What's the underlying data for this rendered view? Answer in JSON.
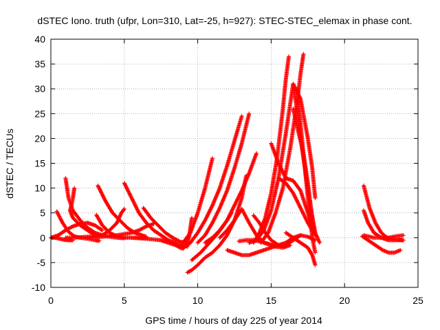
{
  "chart_data": {
    "type": "scatter",
    "title": "dSTEC Iono. truth (ufpr, Lon=310, Lat=-25, h=927): STEC-STEC_elemax in phase cont.",
    "xlabel": "GPS time / hours of day 225 of year 2014",
    "ylabel": "dSTEC  / TECUs",
    "xlim": [
      0,
      25
    ],
    "ylim": [
      -10,
      40
    ],
    "x_ticks": [
      0,
      5,
      10,
      15,
      20,
      25
    ],
    "y_ticks": [
      -10,
      -5,
      0,
      5,
      10,
      15,
      20,
      25,
      30,
      35,
      40
    ],
    "grid": true,
    "marker": "+",
    "color": "#ff0000",
    "series": [
      {
        "x": [
          0.0,
          0.3,
          0.6,
          0.9,
          1.2,
          1.5
        ],
        "y": [
          0.0,
          0.0,
          -0.2,
          -0.4,
          -0.5,
          -0.5
        ]
      },
      {
        "x": [
          0.0,
          0.5,
          1.0,
          1.5,
          2.0,
          2.5,
          3.0,
          3.5
        ],
        "y": [
          0.0,
          0.5,
          1.5,
          2.3,
          2.8,
          3.0,
          2.5,
          1.5
        ]
      },
      {
        "x": [
          0.4,
          0.8,
          1.2,
          1.6,
          2.0,
          2.5,
          3.0,
          3.3
        ],
        "y": [
          5.3,
          3.0,
          1.2,
          0.3,
          0.0,
          -0.2,
          -0.5,
          -0.6
        ]
      },
      {
        "x": [
          1.0,
          1.2,
          1.5,
          2.0,
          2.5,
          3.0,
          3.5,
          4.0,
          4.5,
          5.0
        ],
        "y": [
          12.0,
          8.0,
          5.5,
          3.5,
          2.0,
          1.0,
          0.5,
          0.2,
          0.0,
          -0.1
        ]
      },
      {
        "x": [
          1.6,
          1.5,
          1.4,
          1.3,
          1.5,
          2.0,
          2.5,
          3.0
        ],
        "y": [
          10.0,
          8.0,
          6.5,
          5.5,
          4.0,
          2.5,
          1.5,
          0.5
        ]
      },
      {
        "x": [
          1.0,
          1.5,
          2.0,
          2.5,
          3.0,
          3.5,
          4.0,
          4.5,
          4.8,
          5.0
        ],
        "y": [
          0.0,
          0.0,
          0.1,
          0.2,
          0.3,
          0.5,
          1.5,
          3.0,
          5.0,
          5.8
        ]
      },
      {
        "x": [
          3.2,
          3.7,
          4.2,
          4.7,
          5.2,
          5.7,
          6.2,
          6.5
        ],
        "y": [
          10.5,
          7.5,
          5.0,
          3.5,
          2.0,
          1.0,
          0.5,
          0.2
        ]
      },
      {
        "x": [
          3.1,
          3.5,
          4.0,
          4.5,
          5.0,
          5.5,
          6.0,
          6.5
        ],
        "y": [
          4.6,
          2.5,
          1.0,
          0.3,
          0.0,
          0.0,
          0.0,
          -0.1
        ]
      },
      {
        "x": [
          5.0,
          5.5,
          6.0,
          6.5,
          7.0,
          7.5,
          8.0,
          8.5
        ],
        "y": [
          11.0,
          8.0,
          5.0,
          3.0,
          1.5,
          0.5,
          -0.5,
          -1.0
        ]
      },
      {
        "x": [
          2.5,
          3.5,
          4.5,
          5.5,
          6.0,
          6.5,
          7.0
        ],
        "y": [
          0.0,
          0.2,
          0.5,
          1.0,
          1.5,
          2.3,
          2.8
        ]
      },
      {
        "x": [
          6.3,
          6.8,
          7.3,
          7.8,
          8.3,
          8.8,
          9.2
        ],
        "y": [
          6.0,
          4.0,
          2.5,
          1.0,
          0.0,
          -0.8,
          -1.0
        ]
      },
      {
        "x": [
          5.5,
          6.5,
          7.5,
          8.0,
          8.5,
          9.0,
          9.3
        ],
        "y": [
          0.0,
          -0.2,
          -0.5,
          -0.8,
          -1.2,
          -1.5,
          -1.8
        ]
      },
      {
        "x": [
          7.5,
          8.0,
          8.5,
          9.0,
          9.3,
          9.5
        ],
        "y": [
          -0.5,
          -1.0,
          -1.5,
          -1.8,
          -1.5,
          -1.0
        ]
      },
      {
        "x": [
          8.5,
          8.8,
          9.0,
          9.2,
          9.4,
          9.5,
          9.6
        ],
        "y": [
          -1.5,
          -2.0,
          -2.2,
          -1.5,
          0.0,
          2.0,
          4.0
        ]
      },
      {
        "x": [
          9.3,
          9.6,
          10.0,
          10.5,
          11.0,
          11.5,
          12.0,
          12.5,
          13.0,
          13.3
        ],
        "y": [
          -7.0,
          -6.5,
          -5.5,
          -4.0,
          -3.0,
          -1.5,
          0.5,
          3.5,
          8.0,
          12.5
        ]
      },
      {
        "x": [
          9.6,
          10.2,
          10.8,
          11.4,
          12.0,
          12.3
        ],
        "y": [
          -4.5,
          -3.0,
          -1.0,
          1.0,
          3.5,
          5.0
        ]
      },
      {
        "x": [
          9.0,
          9.5,
          10.0,
          10.5,
          11.0
        ],
        "y": [
          -1.0,
          1.0,
          5.0,
          10.0,
          16.0
        ]
      },
      {
        "x": [
          9.5,
          10.0,
          10.5,
          11.0,
          11.5,
          12.0,
          12.5,
          13.0
        ],
        "y": [
          -1.0,
          1.0,
          3.5,
          6.5,
          10.0,
          14.5,
          19.5,
          24.5
        ]
      },
      {
        "x": [
          10.0,
          10.5,
          11.0,
          11.5,
          12.0,
          12.5,
          13.0,
          13.5
        ],
        "y": [
          -1.0,
          0.5,
          3.0,
          6.0,
          9.5,
          14.0,
          19.0,
          25.0
        ]
      },
      {
        "x": [
          10.5,
          11.0,
          11.5,
          12.0,
          12.5,
          13.0,
          13.5,
          14.0
        ],
        "y": [
          -1.0,
          0.0,
          1.5,
          3.5,
          6.5,
          9.5,
          13.0,
          17.0
        ]
      },
      {
        "x": [
          11.5,
          12.0,
          12.5,
          13.0,
          13.5,
          14.0,
          14.5,
          15.0,
          15.5
        ],
        "y": [
          0.0,
          1.5,
          3.5,
          5.8,
          3.0,
          0.5,
          -1.0,
          -1.5,
          -1.5
        ]
      },
      {
        "x": [
          12.0,
          12.5,
          13.0,
          13.5,
          14.0,
          14.5,
          15.0,
          15.5,
          16.0,
          16.5,
          17.0
        ],
        "y": [
          -2.5,
          -3.0,
          -3.5,
          -3.5,
          -3.0,
          -2.5,
          -2.0,
          -1.5,
          -1.0,
          0.0,
          0.5
        ]
      },
      {
        "x": [
          12.8,
          13.3,
          13.8,
          14.3,
          14.8,
          15.3,
          15.8,
          16.3
        ],
        "y": [
          -0.7,
          -0.5,
          -0.5,
          -0.8,
          -1.2,
          -1.8,
          -2.0,
          -1.5
        ]
      },
      {
        "x": [
          13.8,
          14.2,
          14.6,
          15.0,
          15.5,
          16.0,
          16.5,
          17.0,
          17.5,
          18.0
        ],
        "y": [
          4.5,
          3.0,
          1.0,
          -0.5,
          -1.5,
          -1.5,
          -0.5,
          0.5,
          0.2,
          -0.5
        ]
      },
      {
        "x": [
          13.5,
          14.0,
          14.5,
          15.0,
          15.5,
          16.0,
          16.5,
          17.0,
          17.5,
          17.8,
          18.0
        ],
        "y": [
          -1.0,
          -0.5,
          1.5,
          5.5,
          12.0,
          21.0,
          31.0,
          28.0,
          20.0,
          14.0,
          8.0
        ]
      },
      {
        "x": [
          13.8,
          14.2,
          14.6,
          15.0,
          15.4,
          15.8,
          16.0,
          16.2
        ],
        "y": [
          -1.0,
          1.0,
          4.0,
          9.0,
          16.0,
          26.0,
          32.0,
          36.5
        ]
      },
      {
        "x": [
          14.3,
          14.8,
          15.3,
          15.8,
          16.3,
          16.8,
          17.0,
          17.2
        ],
        "y": [
          -1.0,
          1.0,
          5.0,
          10.0,
          18.0,
          28.0,
          33.0,
          37.0
        ]
      },
      {
        "x": [
          15.0,
          15.5,
          16.0,
          16.5,
          17.0,
          17.5,
          18.0
        ],
        "y": [
          19.0,
          15.0,
          12.0,
          11.5,
          9.5,
          5.0,
          0.5
        ]
      },
      {
        "x": [
          15.5,
          16.0,
          16.5,
          17.0,
          17.5,
          18.0
        ],
        "y": [
          12.0,
          11.0,
          9.0,
          6.0,
          3.0,
          0.5
        ]
      },
      {
        "x": [
          16.5,
          16.8,
          17.1,
          17.4,
          17.7,
          18.0,
          18.3
        ],
        "y": [
          31.0,
          25.0,
          18.0,
          12.0,
          6.0,
          1.0,
          -1.0
        ]
      },
      {
        "x": [
          16.8,
          17.0,
          17.2,
          17.4,
          17.6,
          17.8,
          18.0
        ],
        "y": [
          30.0,
          23.0,
          17.0,
          11.0,
          5.0,
          0.0,
          -3.0
        ]
      },
      {
        "x": [
          16.5,
          16.8,
          17.2,
          17.5,
          17.8,
          18.0
        ],
        "y": [
          26.0,
          22.0,
          17.0,
          11.0,
          4.0,
          1.0
        ]
      },
      {
        "x": [
          16.0,
          16.5,
          17.0,
          17.5,
          17.8,
          18.0
        ],
        "y": [
          1.0,
          0.0,
          -1.0,
          -2.0,
          -3.5,
          -5.5
        ]
      },
      {
        "x": [
          21.3,
          21.7,
          22.1,
          22.5,
          22.9,
          23.3,
          23.7,
          24.0
        ],
        "y": [
          10.5,
          6.0,
          3.0,
          1.0,
          0.0,
          -0.3,
          -0.4,
          -0.5
        ]
      },
      {
        "x": [
          21.3,
          21.6,
          22.0,
          22.5,
          23.0,
          23.5,
          24.0
        ],
        "y": [
          5.5,
          3.0,
          1.0,
          0.0,
          -0.5,
          -0.5,
          -0.5
        ]
      },
      {
        "x": [
          21.2,
          21.6,
          22.1,
          22.6,
          23.0,
          23.4,
          23.8
        ],
        "y": [
          0.3,
          -0.5,
          -1.5,
          -2.5,
          -3.0,
          -3.0,
          -2.5
        ]
      },
      {
        "x": [
          21.3,
          22.0,
          22.5,
          23.0,
          23.5,
          24.0
        ],
        "y": [
          0.5,
          0.0,
          0.0,
          0.0,
          0.3,
          0.5
        ]
      }
    ]
  }
}
